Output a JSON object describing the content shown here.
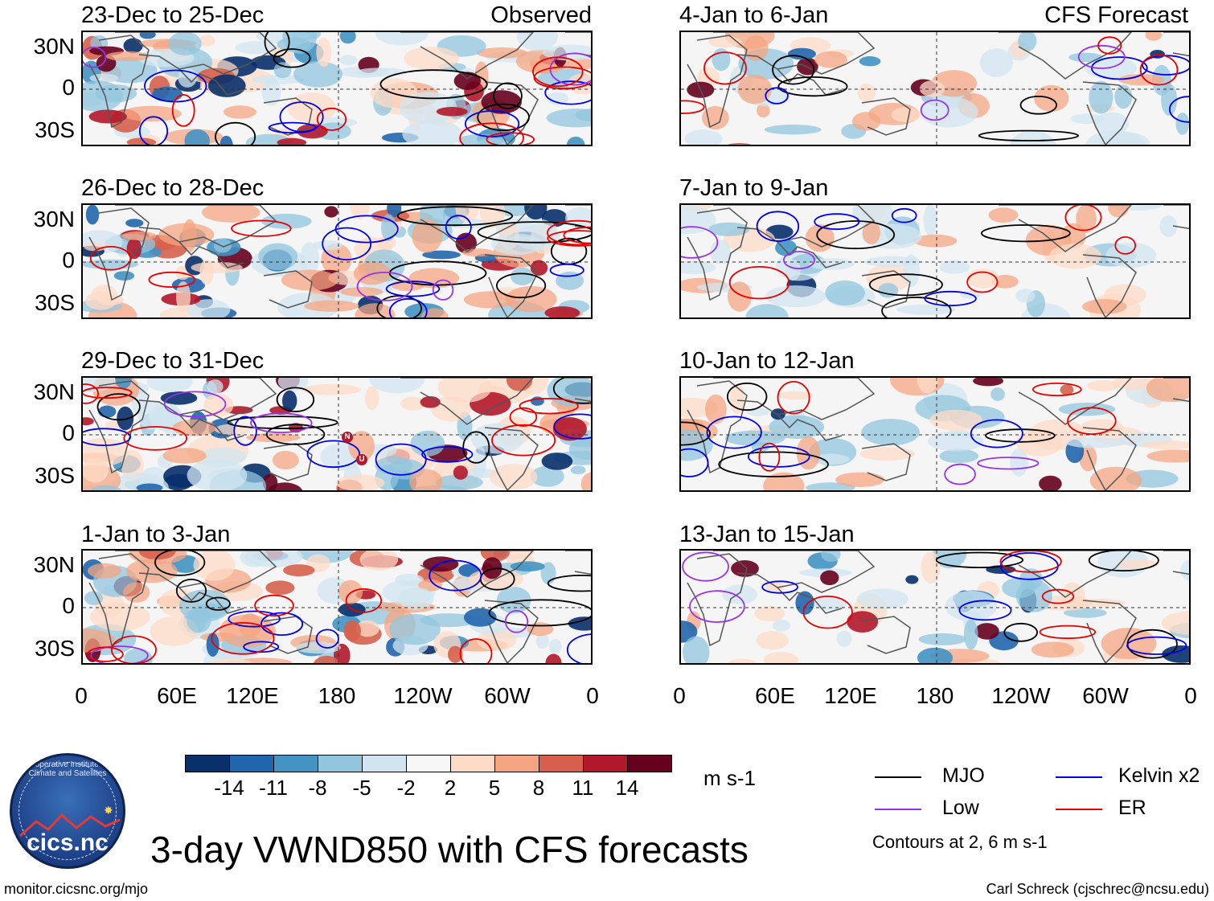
{
  "panels_left": [
    {
      "title": "23-Dec to 25-Dec",
      "tag": "Observed"
    },
    {
      "title": "26-Dec to 28-Dec",
      "tag": ""
    },
    {
      "title": "29-Dec to 31-Dec",
      "tag": ""
    },
    {
      "title": "1-Jan to 3-Jan",
      "tag": ""
    }
  ],
  "panels_right": [
    {
      "title": "4-Jan to 6-Jan",
      "tag": "CFS Forecast"
    },
    {
      "title": "7-Jan to 9-Jan",
      "tag": ""
    },
    {
      "title": "10-Jan to 12-Jan",
      "tag": ""
    },
    {
      "title": "13-Jan to 15-Jan",
      "tag": ""
    }
  ],
  "lat_labels": [
    "30N",
    "0",
    "30S"
  ],
  "lon_labels": [
    "0",
    "60E",
    "120E",
    "180",
    "120W",
    "60W",
    "0"
  ],
  "storm_markers": [
    "N",
    "U"
  ],
  "colorbar": {
    "colors": [
      "#08306b",
      "#2166ac",
      "#4393c3",
      "#92c5de",
      "#d1e5f0",
      "#f7f7f7",
      "#fddbc7",
      "#f4a582",
      "#d6604d",
      "#b2182b",
      "#67001f"
    ],
    "labels": [
      "-14",
      "-11",
      "-8",
      "-5",
      "-2",
      "2",
      "5",
      "8",
      "11",
      "14"
    ],
    "units": "m s-1"
  },
  "legend": [
    {
      "label": "MJO",
      "color": "#000000"
    },
    {
      "label": "Kelvin x2",
      "color": "#0000e6"
    },
    {
      "label": "Low",
      "color": "#9932e6"
    },
    {
      "label": "ER",
      "color": "#e60000"
    }
  ],
  "contour_note": "Contours at 2, 6 m s-1",
  "main_title": "3-day VWND850 with CFS forecasts",
  "logo": {
    "name": "cics.nc",
    "arc_text": "Cooperative Institute for Climate and Satellites"
  },
  "footer_left": "monitor.cicsnc.org/mjo",
  "footer_right": "Carl Schreck (cjschrec@ncsu.edu)"
}
